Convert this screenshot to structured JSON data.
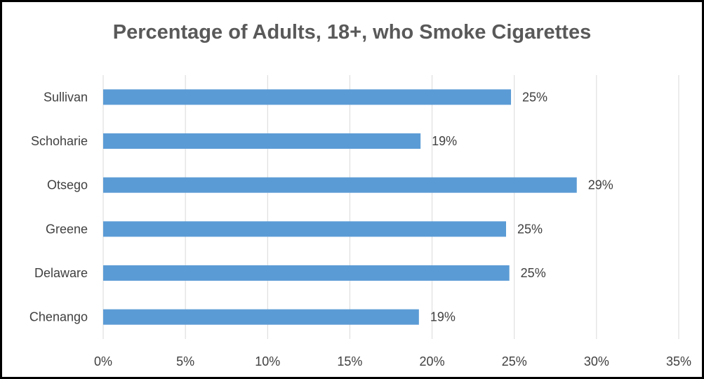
{
  "chart_data": {
    "type": "bar",
    "orientation": "horizontal",
    "title": "Percentage of Adults, 18+, who Smoke Cigarettes",
    "categories": [
      "Chenango",
      "Delaware",
      "Greene",
      "Otsego",
      "Schoharie",
      "Sullivan"
    ],
    "values": [
      19.2,
      24.7,
      24.5,
      28.8,
      19.3,
      24.8
    ],
    "data_labels": [
      "19%",
      "25%",
      "25%",
      "29%",
      "19%",
      "25%"
    ],
    "xlim": [
      0,
      35
    ],
    "x_ticks": [
      0,
      5,
      10,
      15,
      20,
      25,
      30,
      35
    ],
    "x_tick_labels": [
      "0%",
      "5%",
      "10%",
      "15%",
      "20%",
      "25%",
      "30%",
      "35%"
    ],
    "xlabel": "",
    "ylabel": "",
    "grid": "vertical",
    "legend": "none",
    "bar_color": "#5B9BD5",
    "grid_color": "#D9D9D9",
    "text_color": "#404040",
    "title_color": "#595959"
  }
}
